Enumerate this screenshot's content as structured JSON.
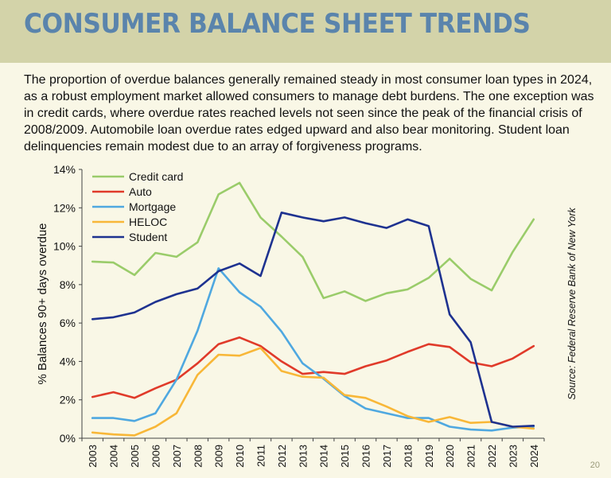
{
  "header": {
    "title": "CONSUMER BALANCE SHEET TRENDS"
  },
  "intro": {
    "text": "The proportion of overdue balances generally remained steady in most consumer loan types in 2024, as a robust employment market allowed consumers to manage debt burdens.  The one exception was in credit cards, where overdue rates reached levels not seen since the peak of the financial crisis of 2008/2009.  Automobile loan overdue rates edged upward and also bear monitoring.  Student loan delinquencies remain modest due to an array of forgiveness programs."
  },
  "page_number": "20",
  "chart_data": {
    "type": "line",
    "xlabel": "",
    "ylabel": "% Balances 90+ days overdue",
    "ylim": [
      0,
      14
    ],
    "yticks": [
      "0%",
      "2%",
      "4%",
      "6%",
      "8%",
      "10%",
      "12%",
      "14%"
    ],
    "categories": [
      "2003",
      "2004",
      "2005",
      "2006",
      "2007",
      "2008",
      "2009",
      "2010",
      "2011",
      "2012",
      "2013",
      "2014",
      "2015",
      "2016",
      "2017",
      "2018",
      "2019",
      "2020",
      "2021",
      "2022",
      "2023",
      "2024"
    ],
    "legend_position": "top-left",
    "grid": false,
    "source": "Source: Federal Reserve Bank of New York",
    "series": [
      {
        "name": "Credit card",
        "color": "#9acc6a",
        "values": [
          9.2,
          9.15,
          8.5,
          9.65,
          9.45,
          10.2,
          12.7,
          13.3,
          11.5,
          10.5,
          9.45,
          7.3,
          7.65,
          7.15,
          7.55,
          7.75,
          8.35,
          9.35,
          8.3,
          7.7,
          9.7,
          11.4
        ]
      },
      {
        "name": "Auto",
        "color": "#e03a2a",
        "values": [
          2.15,
          2.4,
          2.1,
          2.6,
          3.05,
          3.9,
          4.9,
          5.25,
          4.8,
          4.0,
          3.35,
          3.45,
          3.35,
          3.75,
          4.05,
          4.5,
          4.9,
          4.75,
          3.95,
          3.75,
          4.15,
          4.8
        ]
      },
      {
        "name": "Mortgage",
        "color": "#4fa8e0",
        "values": [
          1.05,
          1.05,
          0.9,
          1.3,
          3.05,
          5.6,
          8.85,
          7.6,
          6.85,
          5.55,
          3.9,
          3.1,
          2.2,
          1.55,
          1.3,
          1.05,
          1.05,
          0.6,
          0.45,
          0.4,
          0.55,
          0.6
        ]
      },
      {
        "name": "HELOC",
        "color": "#f8b738",
        "values": [
          0.3,
          0.2,
          0.15,
          0.6,
          1.3,
          3.3,
          4.35,
          4.3,
          4.7,
          3.5,
          3.2,
          3.15,
          2.25,
          2.1,
          1.65,
          1.15,
          0.85,
          1.1,
          0.8,
          0.85,
          0.6,
          0.5
        ]
      },
      {
        "name": "Student",
        "color": "#1e3290",
        "values": [
          6.2,
          6.3,
          6.55,
          7.1,
          7.5,
          7.8,
          8.7,
          9.1,
          8.45,
          11.75,
          11.5,
          11.3,
          11.5,
          11.2,
          10.95,
          11.4,
          11.05,
          6.45,
          5.0,
          0.85,
          0.6,
          0.65
        ]
      }
    ]
  }
}
